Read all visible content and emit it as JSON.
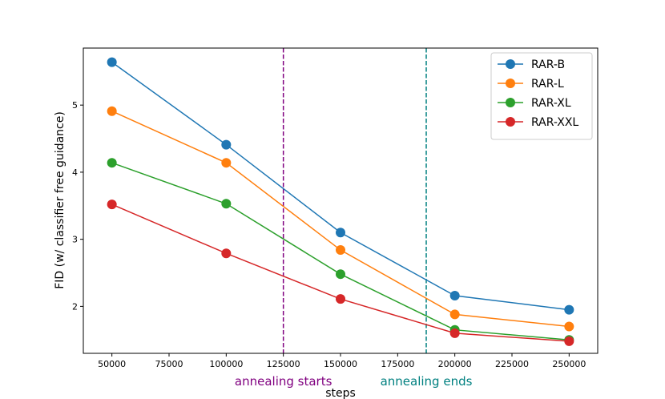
{
  "chart_data": {
    "type": "line",
    "title": "",
    "xlabel": "steps",
    "ylabel": "FID (w/ classifier free guidance)",
    "x": [
      50000,
      100000,
      150000,
      200000,
      250000
    ],
    "xlim": [
      37500,
      262500
    ],
    "ylim": [
      1.3,
      5.85
    ],
    "xticks": [
      50000,
      75000,
      100000,
      125000,
      150000,
      175000,
      200000,
      225000,
      250000
    ],
    "xtick_labels": [
      "50000",
      "75000",
      "100000",
      "125000",
      "150000",
      "175000",
      "200000",
      "225000",
      "250000"
    ],
    "yticks": [
      2,
      3,
      4,
      5
    ],
    "ytick_labels": [
      "2",
      "3",
      "4",
      "5"
    ],
    "grid": false,
    "legend_position": "top-right",
    "series": [
      {
        "name": "RAR-B",
        "color": "#1f77b4",
        "values": [
          5.64,
          4.41,
          3.1,
          2.16,
          1.95
        ]
      },
      {
        "name": "RAR-L",
        "color": "#ff7f0e",
        "values": [
          4.91,
          4.14,
          2.84,
          1.88,
          1.7
        ]
      },
      {
        "name": "RAR-XL",
        "color": "#2ca02c",
        "values": [
          4.14,
          3.53,
          2.48,
          1.65,
          1.5
        ]
      },
      {
        "name": "RAR-XXL",
        "color": "#d62728",
        "values": [
          3.52,
          2.79,
          2.11,
          1.6,
          1.48
        ]
      }
    ],
    "vlines": [
      {
        "x": 125000,
        "label": "annealing starts",
        "color": "#800080"
      },
      {
        "x": 187500,
        "label": "annealing ends",
        "color": "#008080"
      }
    ]
  }
}
